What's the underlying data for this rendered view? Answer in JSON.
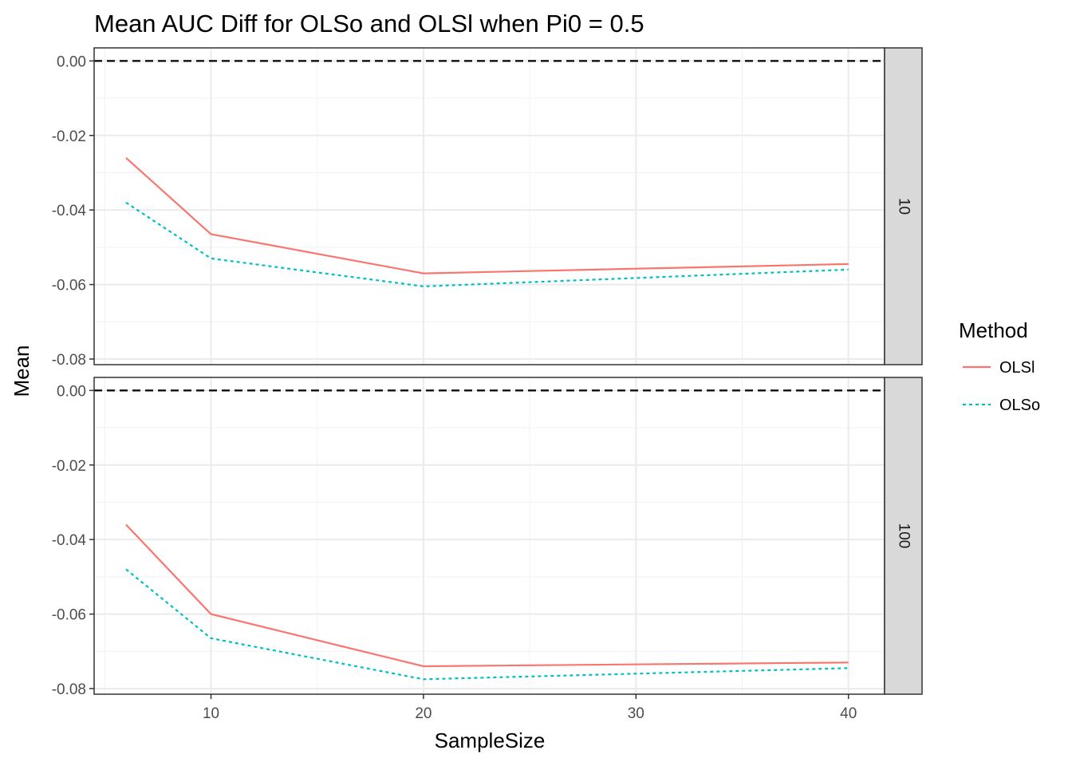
{
  "chart_data": {
    "type": "line",
    "title": "Mean AUC Diff for OLSo and OLSl when Pi0 = 0.5",
    "xlabel": "SampleSize",
    "ylabel": "Mean",
    "x": [
      6,
      10,
      20,
      40
    ],
    "x_ticks": [
      "10",
      "20",
      "30",
      "40"
    ],
    "y_ticks": [
      "0.00",
      "-0.02",
      "-0.04",
      "-0.06",
      "-0.08"
    ],
    "xlim": [
      4.5,
      41.7
    ],
    "ylim": [
      -0.0815,
      0.0035
    ],
    "grid": true,
    "reference_line": {
      "y": 0.0,
      "style": "dashed",
      "color": "#000000"
    },
    "legend": {
      "title": "Method",
      "position": "right",
      "entries": [
        {
          "label": "OLSl",
          "color": "#F8766D",
          "dash": "solid"
        },
        {
          "label": "OLSo",
          "color": "#00BFC4",
          "dash": "dotted"
        }
      ]
    },
    "panels": [
      {
        "strip_label": "10",
        "series": [
          {
            "name": "OLSl",
            "values": [
              -0.026,
              -0.0465,
              -0.057,
              -0.0545
            ]
          },
          {
            "name": "OLSo",
            "values": [
              -0.038,
              -0.053,
              -0.0605,
              -0.056
            ]
          }
        ]
      },
      {
        "strip_label": "100",
        "series": [
          {
            "name": "OLSl",
            "values": [
              -0.036,
              -0.06,
              -0.074,
              -0.073
            ]
          },
          {
            "name": "OLSo",
            "values": [
              -0.048,
              -0.0665,
              -0.0775,
              -0.0745
            ]
          }
        ]
      }
    ]
  }
}
